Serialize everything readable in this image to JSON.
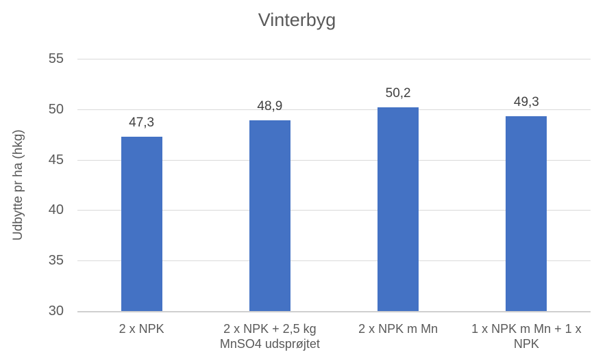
{
  "chart_data": {
    "type": "bar",
    "title": "Vinterbyg",
    "xlabel": "",
    "ylabel": "Udbytte pr ha (hkg)",
    "categories": [
      "2 x NPK",
      "2 x NPK + 2,5 kg MnSO4 udsprøjtet",
      "2 x NPK m Mn",
      "1 x NPK m Mn + 1 x NPK"
    ],
    "values": [
      47.3,
      48.9,
      50.2,
      49.3
    ],
    "data_labels": [
      "47,3",
      "48,9",
      "50,2",
      "49,3"
    ],
    "ylim": [
      30,
      55
    ],
    "yticks": [
      30,
      35,
      40,
      45,
      50,
      55
    ],
    "grid": true,
    "legend": false,
    "colors": {
      "bar": "#4472c4",
      "gridline": "#d9d9d9",
      "axis_line": "#cfcfcf",
      "text": "#595959",
      "data_label": "#404040",
      "background": "#ffffff"
    }
  }
}
